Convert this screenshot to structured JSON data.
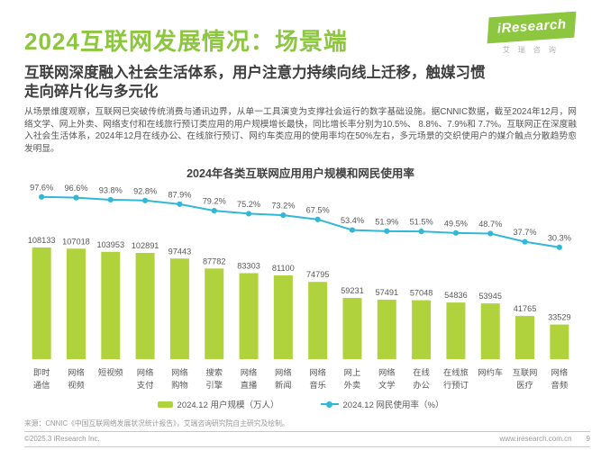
{
  "page": {
    "title": "2024互联网发展情况：场景端",
    "subtitle_line1": "互联网深度融入社会生活体系，用户注意力持续向线上迁移，触媒习惯",
    "subtitle_line2": "走向碎片化与多元化",
    "body": "从场景维度观察，互联网已突破传统消费与通讯边界，从单一工具演变为支撑社会运行的数字基础设施。据CNNIC数据，截至2024年12月，网络文学、网上外卖、网络支付和在线旅行预订类应用的用户规模增长最快，同比增长率分别为10.5%、 8.8%、7.9%和 7.7%。互联网正在深度融入社会生活体系，2024年12月在线办公、在线旅行预订、网约车类应用的使用率均在50%左右，多元场景的交织使用户的媒介触点分散趋势愈发明显。"
  },
  "logo": {
    "brand_i": "i",
    "brand_rest": "Research",
    "brand_cn": "艾瑞咨询"
  },
  "chart_data": {
    "type": "bar",
    "subtype": "bar+line combo",
    "title": "2024年各类互联网应用用户规模和网民使用率",
    "categories": [
      "即时通信",
      "网络视频",
      "短视频",
      "网络支付",
      "网络购物",
      "搜索引擎",
      "网络直播",
      "网络新闻",
      "网络音乐",
      "网上外卖",
      "网络文学",
      "在线办公",
      "在线旅行预订",
      "网约车",
      "互联网医疗",
      "网络音频"
    ],
    "category_lines": [
      [
        "即时",
        "通信"
      ],
      [
        "网络",
        "视频"
      ],
      [
        "短视频"
      ],
      [
        "网络",
        "支付"
      ],
      [
        "网络",
        "购物"
      ],
      [
        "搜索",
        "引擎"
      ],
      [
        "网络",
        "直播"
      ],
      [
        "网络",
        "新闻"
      ],
      [
        "网络",
        "音乐"
      ],
      [
        "网上",
        "外卖"
      ],
      [
        "网络",
        "文学"
      ],
      [
        "在线",
        "办公"
      ],
      [
        "在线旅",
        "行预订"
      ],
      [
        "网约车"
      ],
      [
        "互联网",
        "医疗"
      ],
      [
        "网络",
        "音频"
      ]
    ],
    "series": [
      {
        "name": "2024.12 用户规模（万人）",
        "type": "bar",
        "color": "#b0d23d",
        "values": [
          108133,
          107018,
          103953,
          102891,
          97443,
          87782,
          83303,
          81100,
          74795,
          59231,
          57491,
          57048,
          54836,
          53945,
          41765,
          33529
        ]
      },
      {
        "name": "2024.12 网民使用率（%）",
        "type": "line",
        "color": "#31b8d9",
        "values": [
          97.6,
          96.6,
          93.8,
          92.8,
          87.9,
          79.2,
          75.2,
          73.2,
          67.5,
          53.4,
          51.9,
          51.5,
          49.5,
          48.7,
          37.7,
          30.3
        ]
      }
    ],
    "bar_ylim": [
      0,
      115000
    ],
    "line_ylim": [
      0,
      100
    ],
    "grid": false,
    "legend_position": "bottom",
    "data_labels": true
  },
  "footer": {
    "source": "来源：CNNIC《中国互联网络发展状况统计报告》，艾瑞咨询研究院自主研究及绘制。",
    "copyright": "©2025.3 iResearch Inc.",
    "website": "www.iresearch.com.cn",
    "page_number": "9"
  },
  "colors": {
    "accent_green": "#8dc63f",
    "bar_green": "#b0d23d",
    "line_cyan": "#31b8d9"
  }
}
